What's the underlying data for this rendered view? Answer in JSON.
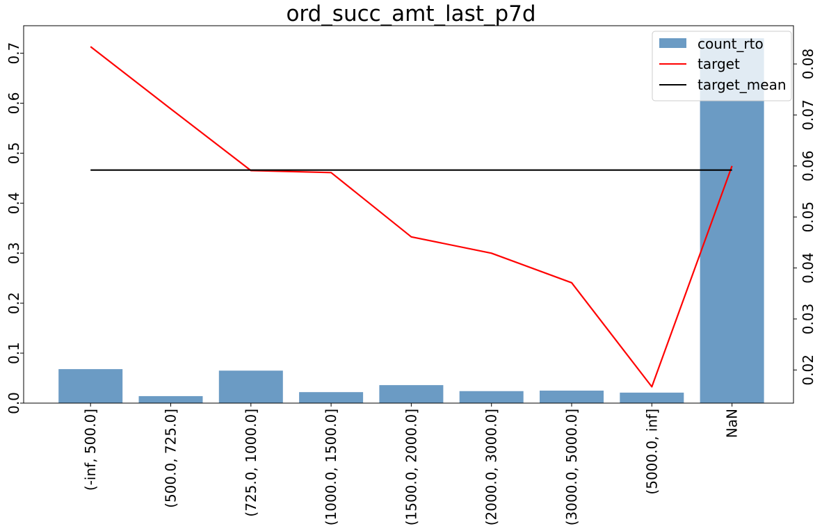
{
  "chart_data": {
    "type": "bar",
    "title": "ord_succ_amt_last_p7d",
    "xlabel": "",
    "ylabel": "",
    "categories": [
      "(-inf, 500.0]",
      "(500.0, 725.0]",
      "(725.0, 1000.0]",
      "(1000.0, 1500.0]",
      "(1500.0, 2000.0]",
      "(2000.0, 3000.0]",
      "(3000.0, 5000.0]",
      "(5000.0, inf]",
      "NaN"
    ],
    "series": [
      {
        "name": "count_rto",
        "type": "bar",
        "axis": "left",
        "color": "#6b9bc4",
        "values": [
          0.068,
          0.014,
          0.065,
          0.022,
          0.036,
          0.024,
          0.025,
          0.021,
          0.73
        ]
      },
      {
        "name": "target",
        "type": "line",
        "axis": "right",
        "color": "#ff0000",
        "values": [
          0.0834,
          0.0712,
          0.0591,
          0.0587,
          0.0461,
          0.0429,
          0.0371,
          0.0167,
          0.06
        ]
      },
      {
        "name": "target_mean",
        "type": "line",
        "axis": "right",
        "color": "#000000",
        "values": [
          0.0592,
          0.0592,
          0.0592,
          0.0592,
          0.0592,
          0.0592,
          0.0592,
          0.0592,
          0.0592
        ]
      }
    ],
    "y_left": {
      "range": [
        0,
        0.755
      ],
      "ticks": [
        "0.0",
        "0.1",
        "0.2",
        "0.3",
        "0.4",
        "0.5",
        "0.6",
        "0.7"
      ]
    },
    "y_right": {
      "range": [
        0.0135,
        0.0875
      ],
      "ticks": [
        "0.02",
        "0.03",
        "0.04",
        "0.05",
        "0.06",
        "0.07",
        "0.08"
      ]
    },
    "grid": false,
    "legend_position": "top-right"
  }
}
